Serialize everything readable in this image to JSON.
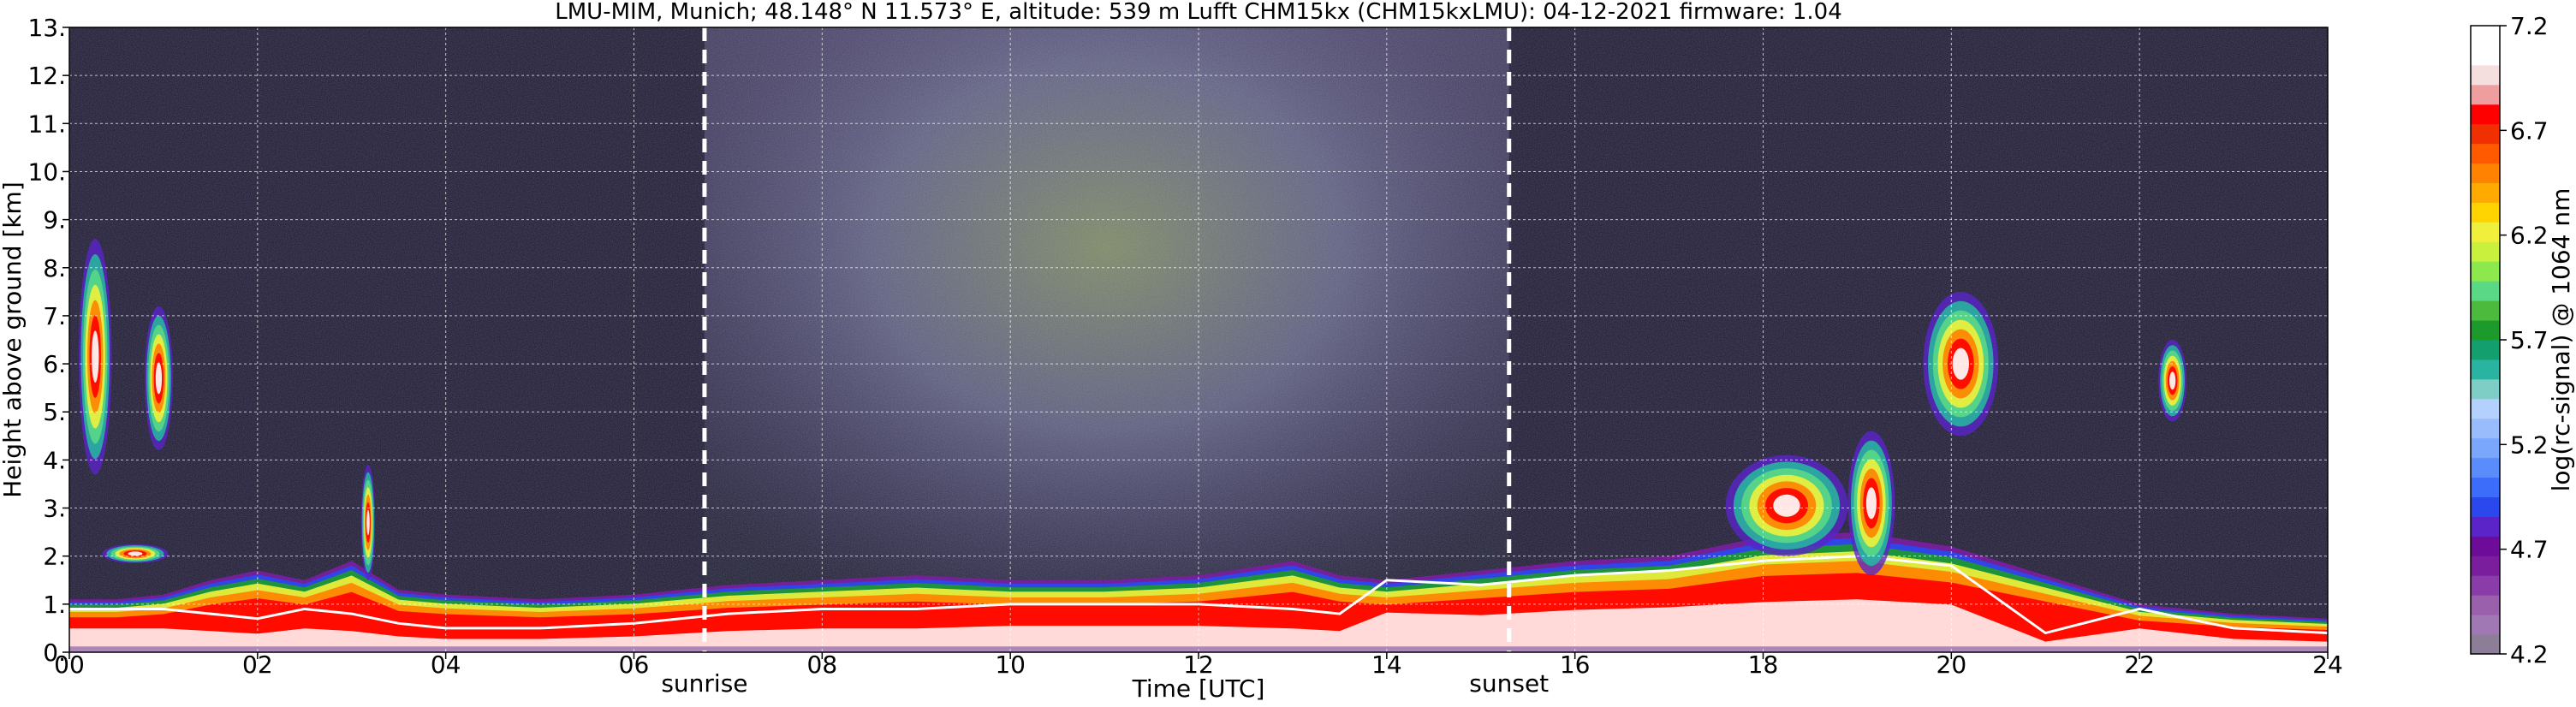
{
  "chart_data": {
    "type": "heatmap",
    "title": "LMU-MIM, Munich; 48.148° N 11.573° E, altitude: 539 m    Lufft CHM15kx (CHM15kxLMU): 04-12-2021    firmware: 1.04",
    "xlabel": "Time [UTC]",
    "ylabel": "Height above ground [km]",
    "colorbar_label": "log(rc-signal) @ 1064 nm",
    "xlim": [
      0,
      24
    ],
    "ylim": [
      0,
      13
    ],
    "x_ticks": [
      0,
      2,
      4,
      6,
      8,
      10,
      12,
      14,
      16,
      18,
      20,
      22,
      24
    ],
    "x_tick_labels": [
      "00",
      "02",
      "04",
      "06",
      "08",
      "10",
      "12",
      "14",
      "16",
      "18",
      "20",
      "22",
      "24"
    ],
    "y_ticks": [
      0,
      1,
      2,
      3,
      4,
      5,
      6,
      7,
      8,
      9,
      10,
      11,
      12,
      13
    ],
    "y_tick_labels": [
      "0.",
      "1.",
      "2.",
      "3.",
      "4.",
      "5.",
      "6.",
      "7.",
      "8.",
      "9.",
      "10.",
      "11.",
      "12.",
      "13."
    ],
    "grid": true,
    "colorbar_range": [
      4.2,
      7.2
    ],
    "colorbar_ticks": [
      4.2,
      4.7,
      5.2,
      5.7,
      6.2,
      6.7,
      7.2
    ],
    "colorbar_tick_labels": [
      "4.2",
      "4.7",
      "5.2",
      "5.7",
      "6.2",
      "6.7",
      "7.2"
    ],
    "colorbar_colors": [
      "#8c7e96",
      "#a078b4",
      "#9a60ac",
      "#8a3ca8",
      "#7a1e9e",
      "#6e0c9a",
      "#5a24c8",
      "#2a48ee",
      "#3c6cfa",
      "#5a8cfc",
      "#7aa6fc",
      "#98bcfc",
      "#b4d0fc",
      "#7ecec6",
      "#28b4a0",
      "#14a06e",
      "#1c9a2c",
      "#4cba3c",
      "#5ad886",
      "#8ce84c",
      "#c8f03c",
      "#f0f03c",
      "#ffd400",
      "#ffaa00",
      "#ff8200",
      "#ff5a00",
      "#f03000",
      "#ff0000",
      "#ee9e9e",
      "#f4dede",
      "#ffffff",
      "#ffffff"
    ],
    "vlines": [
      {
        "label": "sunrise",
        "x": 6.75
      },
      {
        "label": "sunset",
        "x": 15.3
      }
    ],
    "features": {
      "boundary_layer_x": [
        0,
        0.5,
        1,
        1.5,
        2,
        2.5,
        3,
        3.5,
        4,
        5,
        6,
        7,
        8,
        9,
        10,
        11,
        12,
        13,
        13.5,
        14,
        15,
        16,
        17,
        18,
        19,
        20,
        21,
        22,
        23,
        24
      ],
      "boundary_layer_top_km": [
        1.1,
        1.1,
        1.2,
        1.5,
        1.7,
        1.5,
        1.9,
        1.3,
        1.2,
        1.1,
        1.2,
        1.4,
        1.5,
        1.6,
        1.5,
        1.5,
        1.6,
        1.9,
        1.6,
        1.5,
        1.7,
        1.9,
        2.0,
        2.4,
        2.5,
        2.2,
        1.6,
        1.0,
        0.8,
        0.7
      ],
      "near_surface_layer_km": [
        0.9,
        0.9,
        0.9,
        0.8,
        0.7,
        0.9,
        0.8,
        0.6,
        0.5,
        0.5,
        0.6,
        0.8,
        0.9,
        0.9,
        1.0,
        1.0,
        1.0,
        0.9,
        0.8,
        1.5,
        1.4,
        1.6,
        1.7,
        1.9,
        2.0,
        1.8,
        0.4,
        0.9,
        0.5,
        0.4
      ],
      "clouds": [
        {
          "x0": 0.1,
          "x1": 0.45,
          "y0": 3.7,
          "y1": 8.6
        },
        {
          "x0": 0.8,
          "x1": 1.1,
          "y0": 4.2,
          "y1": 7.2
        },
        {
          "x0": 0.35,
          "x1": 1.05,
          "y0": 1.85,
          "y1": 2.25
        },
        {
          "x0": 3.1,
          "x1": 3.25,
          "y0": 1.5,
          "y1": 3.9
        },
        {
          "x0": 17.6,
          "x1": 18.9,
          "y0": 2.0,
          "y1": 4.1
        },
        {
          "x0": 18.9,
          "x1": 19.4,
          "y0": 1.6,
          "y1": 4.6
        },
        {
          "x0": 19.7,
          "x1": 20.5,
          "y0": 4.5,
          "y1": 7.5
        },
        {
          "x0": 22.2,
          "x1": 22.5,
          "y0": 4.8,
          "y1": 6.5
        }
      ],
      "daylight_noise": {
        "x0": 6.75,
        "x1": 15.3
      }
    }
  }
}
